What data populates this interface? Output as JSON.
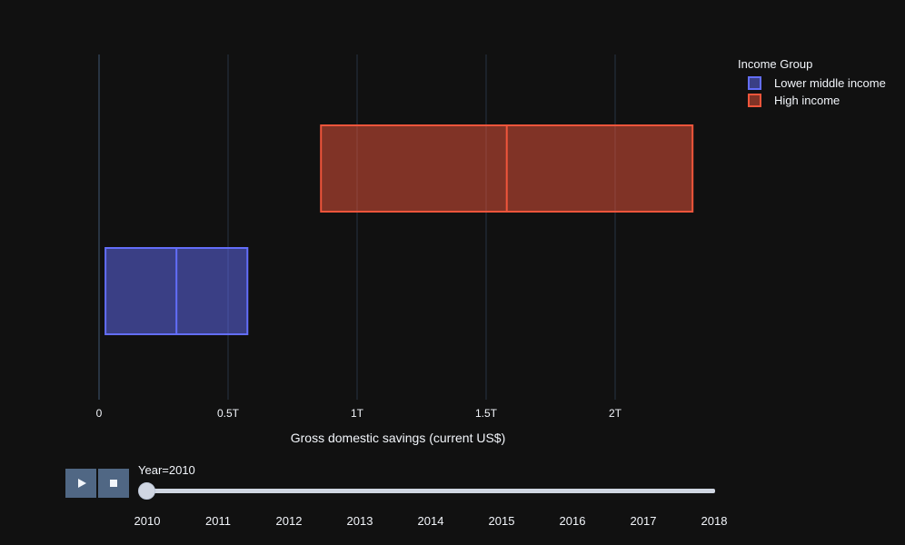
{
  "chart_data": {
    "type": "box",
    "orientation": "horizontal",
    "xlabel": "Gross domestic savings (current US$)",
    "ylabel": "",
    "xlim": [
      0,
      2400000000000.0
    ],
    "xticks": [
      0,
      500000000000.0,
      1000000000000.0,
      1500000000000.0,
      2000000000000.0
    ],
    "xtick_labels": [
      "0",
      "0.5T",
      "1T",
      "1.5T",
      "2T"
    ],
    "grid": true,
    "legend_title": "Income Group",
    "legend_position": "top-right",
    "series": [
      {
        "name": "Lower middle income",
        "color": "#636efa",
        "q1": 25000000000.0,
        "median": 300000000000.0,
        "q3": 575000000000.0
      },
      {
        "name": "High income",
        "color": "#ef553b",
        "q1": 860000000000.0,
        "median": 1580000000000.0,
        "q3": 2300000000000.0
      }
    ]
  },
  "animation": {
    "current_label": "Year=2010",
    "play_icon": "play-icon",
    "stop_icon": "stop-icon",
    "years": [
      "2010",
      "2011",
      "2012",
      "2013",
      "2014",
      "2015",
      "2016",
      "2017",
      "2018"
    ],
    "current_year": "2010"
  }
}
